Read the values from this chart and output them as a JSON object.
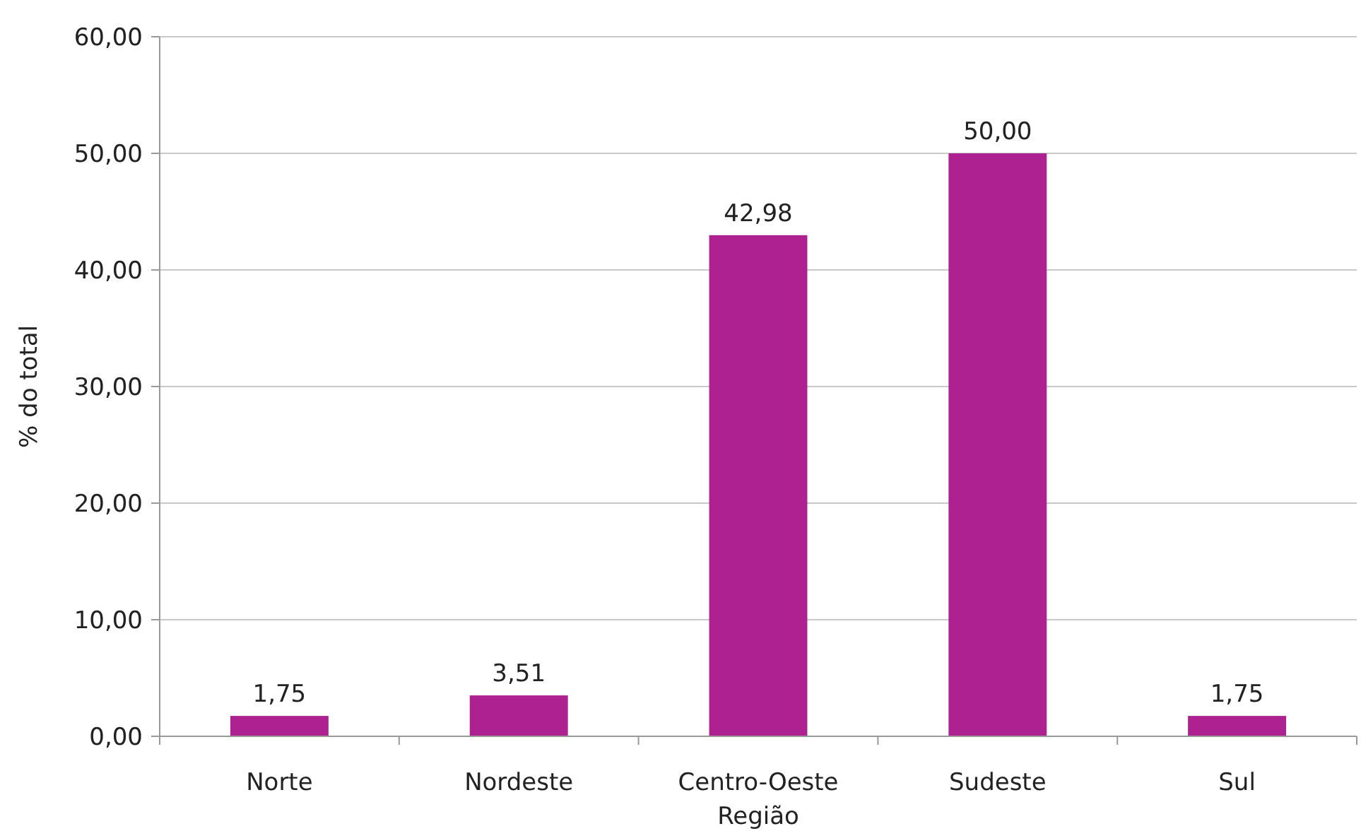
{
  "chart_data": {
    "type": "bar",
    "xlabel": "Região",
    "ylabel": "% do total",
    "categories": [
      "Norte",
      "Nordeste",
      "Centro-Oeste",
      "Sudeste",
      "Sul"
    ],
    "values": [
      1.75,
      3.51,
      42.98,
      50.0,
      1.75
    ],
    "value_labels": [
      "1,75",
      "3,51",
      "42,98",
      "50,00",
      "1,75"
    ],
    "color": "#ae2190",
    "ylim": [
      0,
      60
    ],
    "yticks": [
      {
        "value": 0,
        "label": "0,00"
      },
      {
        "value": 10,
        "label": "10,00"
      },
      {
        "value": 20,
        "label": "20,00"
      },
      {
        "value": 30,
        "label": "30,00"
      },
      {
        "value": 40,
        "label": "40,00"
      },
      {
        "value": 50,
        "label": "50,00"
      },
      {
        "value": 60,
        "label": "60,00"
      }
    ],
    "grid": "y"
  }
}
